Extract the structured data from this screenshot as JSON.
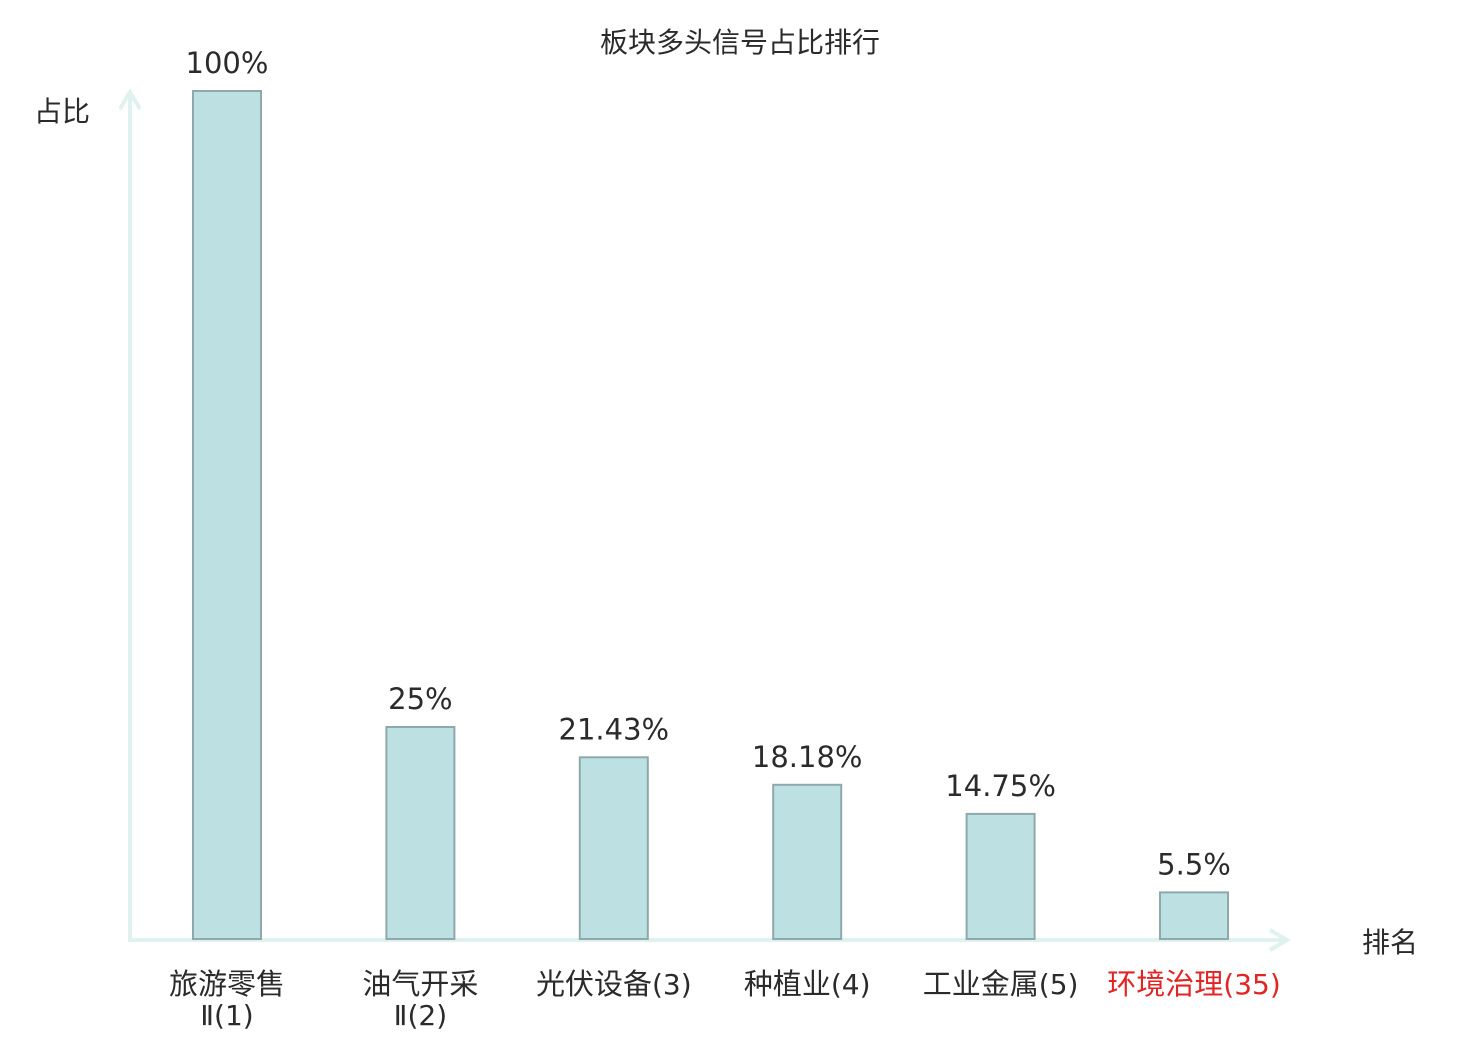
{
  "colors": {
    "bar_fill": "#bde0e2",
    "bar_stroke": "#8ea8ab",
    "axis": "#e0f2ef",
    "text": "#2b2b2b",
    "highlight": "#e32424"
  },
  "chart_data": {
    "type": "bar",
    "title": "板块多头信号占比排行",
    "ylabel": "占比",
    "xlabel": "排名",
    "ylim": [
      0,
      100
    ],
    "grid": false,
    "legend": "none",
    "categories": [
      {
        "name": "旅游零售",
        "rank": "Ⅱ(1)",
        "highlight": false
      },
      {
        "name": "油气开采",
        "rank": "Ⅱ(2)",
        "highlight": false
      },
      {
        "name": "光伏设备",
        "rank": "(3)",
        "highlight": false
      },
      {
        "name": "种植业",
        "rank": "(4)",
        "highlight": false
      },
      {
        "name": "工业金属",
        "rank": "(5)",
        "highlight": false
      },
      {
        "name": "环境治理",
        "rank": "(35)",
        "highlight": true
      }
    ],
    "values": [
      100,
      25,
      21.43,
      18.18,
      14.75,
      5.5
    ],
    "value_labels": [
      "100%",
      "25%",
      "21.43%",
      "18.18%",
      "14.75%",
      "5.5%"
    ]
  }
}
